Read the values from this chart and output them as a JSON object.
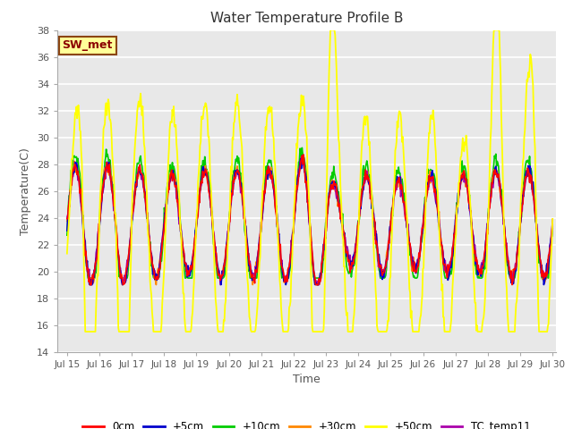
{
  "title": "Water Temperature Profile B",
  "xlabel": "Time",
  "ylabel": "Temperature(C)",
  "ylim": [
    14,
    38
  ],
  "xlim_days": [
    14.7,
    30.1
  ],
  "bg_color": "#e8e8e8",
  "annotation_text": "SW_met",
  "annotation_bg": "#ffff99",
  "annotation_border": "#8B4513",
  "annotation_text_color": "#8B0000",
  "series_colors": {
    "0cm": "#ff0000",
    "+5cm": "#0000cc",
    "+10cm": "#00cc00",
    "+30cm": "#ff8800",
    "+50cm": "#ffff00",
    "TC_temp11": "#aa00aa"
  },
  "series_labels": [
    "0cm",
    "+5cm",
    "+10cm",
    "+30cm",
    "+50cm",
    "TC_temp11"
  ],
  "tick_labels": [
    "Jul 15",
    "Jul 16",
    "Jul 17",
    "Jul 18",
    "Jul 19",
    "Jul 20",
    "Jul 21",
    "Jul 22",
    "Jul 23",
    "Jul 24",
    "Jul 25",
    "Jul 26",
    "Jul 27",
    "Jul 28",
    "Jul 29",
    "Jul 30"
  ],
  "tick_positions": [
    15,
    16,
    17,
    18,
    19,
    20,
    21,
    22,
    23,
    24,
    25,
    26,
    27,
    28,
    29,
    30
  ],
  "grid_color": "#ffffff",
  "yticks": [
    14,
    16,
    18,
    20,
    22,
    24,
    26,
    28,
    30,
    32,
    34,
    36,
    38
  ]
}
